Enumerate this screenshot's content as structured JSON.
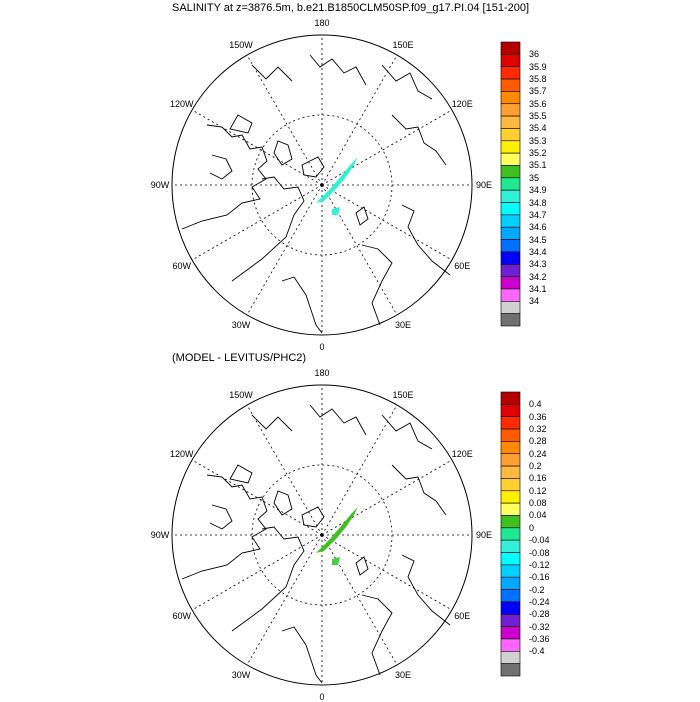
{
  "panels": [
    {
      "title": "SALINITY at z=3876.5m, b.e21.B1850CLM50SP.f09_g17.PI.04 [151-200]",
      "lon_labels": [
        "180",
        "150E",
        "120E",
        "90E",
        "60E",
        "30E",
        "0",
        "30W",
        "60W",
        "90W",
        "120W",
        "150W"
      ],
      "colorbar": {
        "labels": [
          "36",
          "35.9",
          "35.8",
          "35.7",
          "35.6",
          "35.5",
          "35.4",
          "35.3",
          "35.2",
          "35.1",
          "35",
          "34.9",
          "34.8",
          "34.7",
          "34.6",
          "34.5",
          "34.4",
          "34.3",
          "34.2",
          "34.1",
          "34"
        ],
        "colors": [
          "#b30000",
          "#e00000",
          "#ff2a00",
          "#ff5a00",
          "#ff8a00",
          "#ffa030",
          "#ffb840",
          "#ffd030",
          "#ffee00",
          "#ffff60",
          "#40c020",
          "#20e890",
          "#30f0d8",
          "#00ffff",
          "#00d0ff",
          "#00a8ff",
          "#0070ff",
          "#0000ff",
          "#7020d0",
          "#cc00cc",
          "#ff66ff",
          "#d0d0d0",
          "#707070"
        ]
      }
    },
    {
      "title": "(MODEL - LEVITUS/PHC2)",
      "lon_labels": [
        "180",
        "150E",
        "120E",
        "90E",
        "60E",
        "30E",
        "0",
        "30W",
        "60W",
        "90W",
        "120W",
        "150W"
      ],
      "colorbar": {
        "labels": [
          "0.4",
          "0.36",
          "0.32",
          "0.28",
          "0.24",
          "0.2",
          "0.16",
          "0.12",
          "0.08",
          "0.04",
          "0",
          "-0.04",
          "-0.08",
          "-0.12",
          "-0.16",
          "-0.2",
          "-0.24",
          "-0.28",
          "-0.32",
          "-0.36",
          "-0.4"
        ],
        "colors": [
          "#b30000",
          "#e00000",
          "#ff2a00",
          "#ff5a00",
          "#ff8a00",
          "#ffa030",
          "#ffb840",
          "#ffd030",
          "#ffee00",
          "#ffff60",
          "#40c020",
          "#20e890",
          "#30f0d8",
          "#00ffff",
          "#00d0ff",
          "#00a8ff",
          "#0070ff",
          "#0000ff",
          "#7020d0",
          "#cc00cc",
          "#ff66ff",
          "#d0d0d0",
          "#707070"
        ]
      }
    }
  ]
}
